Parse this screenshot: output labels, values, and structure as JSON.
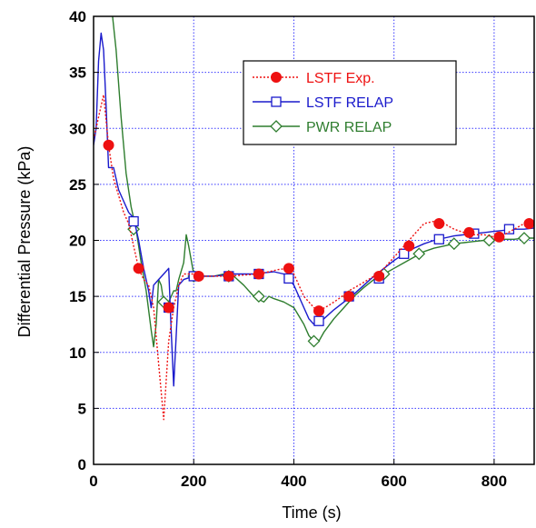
{
  "chart_data": {
    "type": "line",
    "title": "",
    "xlabel": "Time (s)",
    "ylabel": "Differential Pressure (kPa)",
    "xlim": [
      0,
      880
    ],
    "ylim": [
      0,
      40
    ],
    "x_ticks": [
      0,
      200,
      400,
      600,
      800
    ],
    "y_ticks": [
      0,
      5,
      10,
      15,
      20,
      25,
      30,
      35,
      40
    ],
    "grid": true,
    "legend_position": "upper-middle",
    "series": [
      {
        "name": "LSTF Exp.",
        "color": "#ee1111",
        "line_style": "dotted",
        "marker": "filled-circle",
        "x": [
          0,
          10,
          20,
          30,
          40,
          50,
          60,
          70,
          80,
          90,
          100,
          110,
          120,
          130,
          140,
          150,
          160,
          170,
          180,
          190,
          200,
          210,
          230,
          250,
          270,
          300,
          330,
          350,
          370,
          390,
          400,
          410,
          420,
          430,
          440,
          450,
          470,
          490,
          510,
          530,
          560,
          580,
          600,
          620,
          640,
          650,
          660,
          680,
          700,
          720,
          740,
          760,
          780,
          800,
          820,
          840,
          860,
          880
        ],
        "y": [
          29,
          31,
          33,
          28.5,
          25.5,
          24,
          22.5,
          21.5,
          19.5,
          17.5,
          16.5,
          16.0,
          14.0,
          9.0,
          4.0,
          11.0,
          14.0,
          16.0,
          17.0,
          17.0,
          17.0,
          16.8,
          16.8,
          16.8,
          16.8,
          16.9,
          17.0,
          17.2,
          17.4,
          17.5,
          17.0,
          16.0,
          15.0,
          14.5,
          14.0,
          13.7,
          14.2,
          14.8,
          15.5,
          16.0,
          16.8,
          17.5,
          18.5,
          19.5,
          20.5,
          21.0,
          21.5,
          21.7,
          21.5,
          21.0,
          20.7,
          20.5,
          20.5,
          20.3,
          20.5,
          21.0,
          21.5,
          21.5
        ],
        "markers_x": [
          30,
          90,
          150,
          210,
          270,
          330,
          390,
          450,
          510,
          570,
          630,
          690,
          750,
          810,
          870
        ],
        "markers_y": [
          28.5,
          17.5,
          14.0,
          16.8,
          16.8,
          17.0,
          17.5,
          13.7,
          15.0,
          16.8,
          19.5,
          21.5,
          20.7,
          20.3,
          21.5
        ]
      },
      {
        "name": "LSTF RELAP",
        "color": "#1a1acc",
        "line_style": "solid",
        "marker": "open-square",
        "x": [
          0,
          5,
          10,
          15,
          20,
          25,
          30,
          40,
          50,
          60,
          70,
          80,
          90,
          100,
          110,
          115,
          120,
          130,
          140,
          150,
          155,
          160,
          170,
          180,
          200,
          220,
          240,
          260,
          280,
          300,
          320,
          340,
          360,
          380,
          390,
          400,
          410,
          420,
          430,
          440,
          450,
          460,
          480,
          500,
          520,
          540,
          560,
          580,
          600,
          620,
          640,
          660,
          680,
          700,
          720,
          740,
          760,
          780,
          800,
          820,
          840,
          860,
          880
        ],
        "y": [
          28.5,
          30,
          36,
          38.5,
          37,
          32,
          26.5,
          26.5,
          24.5,
          23.5,
          22.5,
          22.0,
          20.0,
          17.5,
          15.5,
          14.0,
          16.0,
          16.5,
          17.0,
          17.5,
          12.0,
          7.0,
          16.0,
          16.5,
          16.8,
          16.8,
          16.8,
          16.9,
          17.0,
          17.0,
          17.0,
          17.1,
          17.2,
          17.0,
          16.6,
          16.0,
          15.0,
          14.0,
          13.0,
          12.5,
          12.5,
          13.0,
          13.8,
          14.5,
          15.2,
          16.0,
          16.8,
          17.5,
          18.2,
          18.8,
          19.3,
          19.7,
          20.0,
          20.2,
          20.4,
          20.5,
          20.6,
          20.7,
          20.8,
          20.9,
          21.0,
          21.0,
          21.1
        ],
        "markers_x": [
          80,
          150,
          200,
          270,
          330,
          390,
          450,
          510,
          570,
          620,
          690,
          760,
          830
        ],
        "markers_y": [
          21.7,
          14.0,
          16.8,
          16.8,
          17.0,
          16.6,
          12.8,
          15.0,
          16.6,
          18.8,
          20.1,
          20.6,
          21.0
        ]
      },
      {
        "name": "PWR RELAP",
        "color": "#2e7d2e",
        "line_style": "solid",
        "marker": "open-diamond",
        "x": [
          38,
          45,
          55,
          65,
          75,
          85,
          95,
          105,
          115,
          120,
          125,
          130,
          135,
          140,
          150,
          160,
          165,
          170,
          180,
          185,
          190,
          200,
          210,
          220,
          240,
          260,
          280,
          300,
          320,
          340,
          350,
          360,
          380,
          400,
          420,
          430,
          440,
          450,
          460,
          480,
          500,
          520,
          540,
          560,
          580,
          600,
          620,
          640,
          660,
          680,
          700,
          720,
          740,
          760,
          780,
          800,
          820,
          840,
          860,
          880
        ],
        "y": [
          40,
          37,
          31,
          26,
          23,
          21,
          18,
          15.5,
          12,
          10.5,
          12.5,
          16.5,
          16,
          14.5,
          14.5,
          15.5,
          15.5,
          16.5,
          18,
          20.5,
          19.5,
          17.0,
          16.8,
          16.8,
          16.8,
          17.0,
          16.8,
          16.0,
          15.0,
          14.5,
          15.0,
          14.8,
          14.5,
          14.0,
          12.5,
          11.5,
          11.0,
          11.0,
          11.8,
          13.0,
          14.0,
          15.0,
          15.8,
          16.5,
          17.0,
          17.5,
          18.0,
          18.5,
          19.0,
          19.3,
          19.5,
          19.7,
          19.8,
          19.9,
          20.0,
          20.0,
          20.1,
          20.1,
          20.2,
          20.2
        ],
        "markers_x": [
          80,
          140,
          200,
          270,
          330,
          440,
          510,
          580,
          650,
          720,
          790,
          860
        ],
        "markers_y": [
          21.0,
          14.5,
          16.8,
          16.8,
          15.0,
          11.0,
          15.0,
          17.0,
          18.8,
          19.7,
          20.0,
          20.2
        ]
      }
    ]
  }
}
